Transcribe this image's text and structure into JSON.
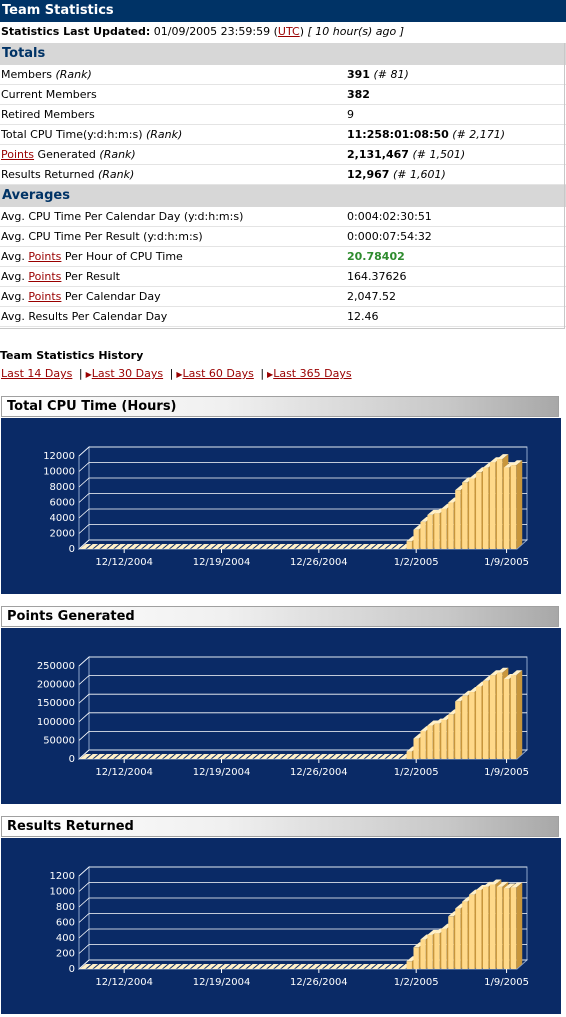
{
  "title": "Team Statistics",
  "updated": {
    "label": "Statistics Last Updated:",
    "datetime": "01/09/2005 23:59:59",
    "tz_open": "(",
    "tz": "UTC",
    "tz_close": ")",
    "ago": "[ 10 hour(s) ago ]"
  },
  "totals": {
    "heading": "Totals",
    "members_label": "Members",
    "members_rank_label": "(Rank)",
    "members_value": "391",
    "members_rank": "(# 81)",
    "current_label": "Current Members",
    "current_value": "382",
    "retired_label": "Retired Members",
    "retired_value": "9",
    "cpu_label": "Total CPU Time(y:d:h:m:s)",
    "cpu_rank_label": "(Rank)",
    "cpu_value": "11:258:01:08:50",
    "cpu_rank": "(# 2,171)",
    "points_link": "Points",
    "points_label": "Generated",
    "points_rank_label": "(Rank)",
    "points_value": "2,131,467",
    "points_rank": "(# 1,501)",
    "results_label": "Results Returned",
    "results_rank_label": "(Rank)",
    "results_value": "12,967",
    "results_rank": "(# 1,601)"
  },
  "averages": {
    "heading": "Averages",
    "cpu_day_label": "Avg. CPU Time Per Calendar Day (y:d:h:m:s)",
    "cpu_day_value": "0:004:02:30:51",
    "cpu_result_label": "Avg. CPU Time Per Result (y:d:h:m:s)",
    "cpu_result_value": "0:000:07:54:32",
    "avg_prefix": "Avg.",
    "points_link": "Points",
    "per_hour_label": "Per Hour of CPU Time",
    "per_hour_value": "20.78402",
    "per_result_label": "Per Result",
    "per_result_value": "164.37626",
    "per_day_label": "Per Calendar Day",
    "per_day_value": "2,047.52",
    "results_day_label": "Avg. Results Per Calendar Day",
    "results_day_value": "12.46"
  },
  "history": {
    "title": "Team Statistics History",
    "links": [
      "Last 14 Days",
      "Last 30 Days",
      "Last 60 Days",
      "Last 365 Days"
    ],
    "separator": "|"
  },
  "colors": {
    "header_bg": "#003366",
    "chart_bg": "#0a2a66",
    "bar_face": "#ffd98a",
    "bar_side": "#c8963c",
    "link": "#990000",
    "green": "#2e8b2e"
  },
  "chart_data": [
    {
      "type": "bar",
      "title": "Total CPU Time (Hours)",
      "ylim": [
        0,
        12000
      ],
      "yticks": [
        "0",
        "2000",
        "4000",
        "6000",
        "8000",
        "10000",
        "12000"
      ],
      "xticks": [
        "12/12/2004",
        "12/19/2004",
        "12/26/2004",
        "1/2/2005",
        "1/9/2005"
      ],
      "values": [
        0,
        0,
        0,
        0,
        0,
        0,
        0,
        0,
        0,
        0,
        0,
        0,
        0,
        0,
        0,
        0,
        0,
        0,
        0,
        0,
        0,
        0,
        0,
        0,
        0,
        0,
        0,
        0,
        0,
        0,
        0,
        0,
        0,
        0,
        0,
        0,
        0,
        0,
        0,
        0,
        0,
        0,
        0,
        0,
        0,
        0,
        0,
        1000,
        2500,
        3500,
        4400,
        4600,
        5200,
        6000,
        7600,
        8600,
        9100,
        9900,
        10500,
        11200,
        11600,
        10500,
        10800
      ]
    },
    {
      "type": "bar",
      "title": "Points Generated",
      "ylim": [
        0,
        250000
      ],
      "yticks": [
        "0",
        "50000",
        "100000",
        "150000",
        "200000",
        "250000"
      ],
      "xticks": [
        "12/12/2004",
        "12/19/2004",
        "12/26/2004",
        "1/2/2005",
        "1/9/2005"
      ],
      "values": [
        0,
        0,
        0,
        0,
        0,
        0,
        0,
        0,
        0,
        0,
        0,
        0,
        0,
        0,
        0,
        0,
        0,
        0,
        0,
        0,
        0,
        0,
        0,
        0,
        0,
        0,
        0,
        0,
        0,
        0,
        0,
        0,
        0,
        0,
        0,
        0,
        0,
        0,
        0,
        0,
        0,
        0,
        0,
        0,
        0,
        0,
        0,
        20000,
        55000,
        75000,
        90000,
        95000,
        105000,
        120000,
        155000,
        170000,
        180000,
        195000,
        210000,
        225000,
        232000,
        215000,
        225000
      ]
    },
    {
      "type": "bar",
      "title": "Results Returned",
      "ylim": [
        0,
        1200
      ],
      "yticks": [
        "0",
        "200",
        "400",
        "600",
        "800",
        "1000",
        "1200"
      ],
      "xticks": [
        "12/12/2004",
        "12/19/2004",
        "12/26/2004",
        "1/2/2005",
        "1/9/2005"
      ],
      "values": [
        0,
        0,
        0,
        0,
        0,
        0,
        0,
        0,
        0,
        0,
        0,
        0,
        0,
        0,
        0,
        0,
        0,
        0,
        0,
        0,
        0,
        0,
        0,
        0,
        0,
        0,
        0,
        0,
        0,
        0,
        0,
        0,
        0,
        0,
        0,
        0,
        0,
        0,
        0,
        0,
        0,
        0,
        0,
        0,
        0,
        0,
        0,
        100,
        280,
        380,
        440,
        460,
        520,
        680,
        780,
        870,
        960,
        1020,
        1060,
        1090,
        1060,
        1040,
        1050
      ]
    }
  ]
}
